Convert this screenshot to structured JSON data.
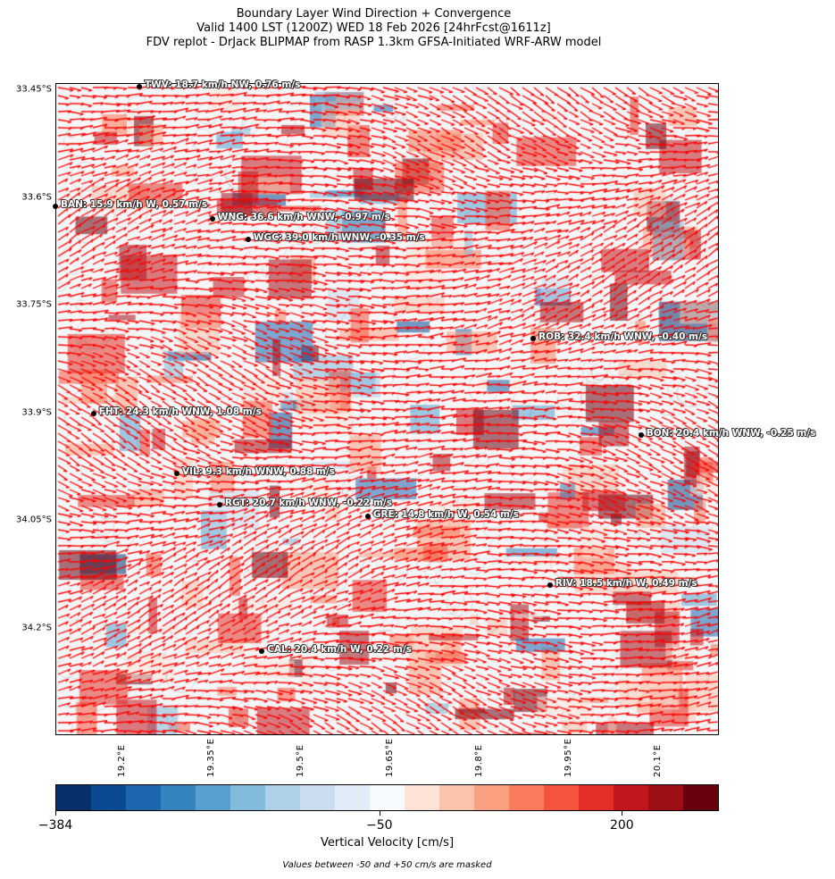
{
  "title": {
    "line1": "Boundary Layer Wind Direction + Convergence",
    "line2": "Valid 1400 LST (1200Z) WED 18 Feb 2026 [24hrFcst@1611z]",
    "line3": "FDV replot - DrJack BLIPMAP from RASP 1.3km GFSA-Initiated WRF-ARW model"
  },
  "map": {
    "extent": {
      "lon": [
        19.086,
        20.201
      ],
      "lat": [
        33.441,
        34.35
      ]
    },
    "lat_ticks": [
      {
        "value": 33.45,
        "label": "33.45°S"
      },
      {
        "value": 33.6,
        "label": "33.6°S"
      },
      {
        "value": 33.75,
        "label": "33.75°S"
      },
      {
        "value": 33.9,
        "label": "33.9°S"
      },
      {
        "value": 34.05,
        "label": "34.05°S"
      },
      {
        "value": 34.2,
        "label": "34.2°S"
      }
    ],
    "lon_ticks": [
      {
        "value": 19.2,
        "label": "19.2°E"
      },
      {
        "value": 19.35,
        "label": "19.35°E"
      },
      {
        "value": 19.5,
        "label": "19.5°E"
      },
      {
        "value": 19.65,
        "label": "19.65°E"
      },
      {
        "value": 19.8,
        "label": "19.8°E"
      },
      {
        "value": 19.95,
        "label": "19.95°E"
      },
      {
        "value": 20.1,
        "label": "20.1°E"
      }
    ],
    "arrow_color": "#ff0000",
    "stations": [
      {
        "lon": 19.227,
        "lat": 33.446,
        "label": "TWV: 18.7 km/h NW, 0.76 m/s"
      },
      {
        "lon": 19.086,
        "lat": 33.613,
        "label": "BAN: 15.9 km/h W, 0.57 m/s"
      },
      {
        "lon": 19.35,
        "lat": 33.63,
        "label": "WNG: 36.6 km/h WNW, -0.97 m/s"
      },
      {
        "lon": 19.41,
        "lat": 33.659,
        "label": "WGC: 39.0 km/h WNW, -0.35 m/s"
      },
      {
        "lon": 19.889,
        "lat": 33.797,
        "label": "ROB: 32.4 km/h WNW, -0.40 m/s"
      },
      {
        "lon": 19.15,
        "lat": 33.902,
        "label": "FHT: 24.3 km/h WNW, 1.08 m/s"
      },
      {
        "lon": 20.07,
        "lat": 33.932,
        "label": "BON: 20.4 km/h WNW, -0.25 m/s"
      },
      {
        "lon": 19.29,
        "lat": 33.985,
        "label": "VIL: 9.3 km/h WNW, 0.88 m/s"
      },
      {
        "lon": 19.362,
        "lat": 34.029,
        "label": "RGT: 20.7 km/h WNW, -0.22 m/s"
      },
      {
        "lon": 19.611,
        "lat": 34.045,
        "label": "GRE: 14.8 km/h W, 0.54 m/s"
      },
      {
        "lon": 19.917,
        "lat": 34.141,
        "label": "RIV: 18.5 km/h W, 0.49 m/s"
      },
      {
        "lon": 19.433,
        "lat": 34.233,
        "label": "CAL: 20.4 km/h W, 0.22 m/s"
      }
    ]
  },
  "colorbar": {
    "title": "Vertical Velocity [cm/s]",
    "range": [
      -384,
      300
    ],
    "tick_labels": [
      {
        "value": -384,
        "label": "−384"
      },
      {
        "value": -50,
        "label": "−50"
      },
      {
        "value": 200,
        "label": "200"
      }
    ],
    "colors": [
      "#08306b",
      "#0a4a90",
      "#1c66ae",
      "#3584c0",
      "#57a0cf",
      "#83bbdb",
      "#afd1e7",
      "#cadcef",
      "#e0ecf8",
      "#f7fbff",
      "#fee2d5",
      "#fcc3ab",
      "#fca082",
      "#fb7c5c",
      "#f5543c",
      "#e32f27",
      "#c1161b",
      "#9e0e15",
      "#67000d"
    ],
    "note": "Values between -50 and +50 cm/s are masked"
  }
}
